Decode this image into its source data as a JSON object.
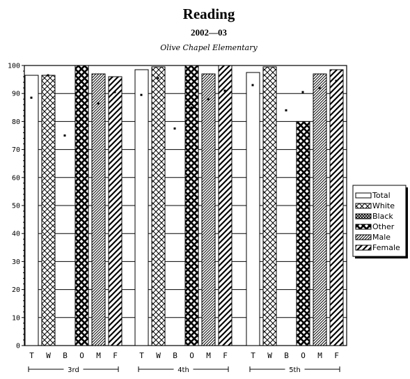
{
  "chart_data": {
    "type": "bar",
    "title": "Reading",
    "subtitle": "2002—03",
    "school": "Olive Chapel Elementary",
    "ylim": [
      0,
      100
    ],
    "yticks": [
      0,
      10,
      20,
      30,
      40,
      50,
      60,
      70,
      80,
      90,
      100
    ],
    "grid": true,
    "legend_position": "right",
    "groups": [
      {
        "label": "3rd",
        "categories": [
          "T",
          "W",
          "B",
          "O",
          "M",
          "F"
        ],
        "values": [
          96.5,
          96.5,
          null,
          100,
          97,
          96
        ],
        "markers": [
          88.5,
          96.5,
          75,
          85.5,
          86.5,
          90.5
        ]
      },
      {
        "label": "4th",
        "categories": [
          "T",
          "W",
          "B",
          "O",
          "M",
          "F"
        ],
        "values": [
          98.5,
          99.5,
          null,
          100,
          97,
          100
        ],
        "markers": [
          89.5,
          95.5,
          77.5,
          85,
          88,
          91
        ]
      },
      {
        "label": "5th",
        "categories": [
          "T",
          "W",
          "B",
          "O",
          "M",
          "F"
        ],
        "values": [
          97.5,
          99.5,
          null,
          80,
          97,
          98.5
        ],
        "markers": [
          93,
          null,
          84,
          90.5,
          92,
          94.5
        ]
      }
    ],
    "legend": [
      {
        "label": "Total",
        "pattern": "none"
      },
      {
        "label": "White",
        "pattern": "crosshatch"
      },
      {
        "label": "Black",
        "pattern": "dense-crosshatch"
      },
      {
        "label": "Other",
        "pattern": "heavy-crosshatch"
      },
      {
        "label": "Male",
        "pattern": "fine-diagonal"
      },
      {
        "label": "Female",
        "pattern": "bold-diagonal"
      }
    ]
  }
}
